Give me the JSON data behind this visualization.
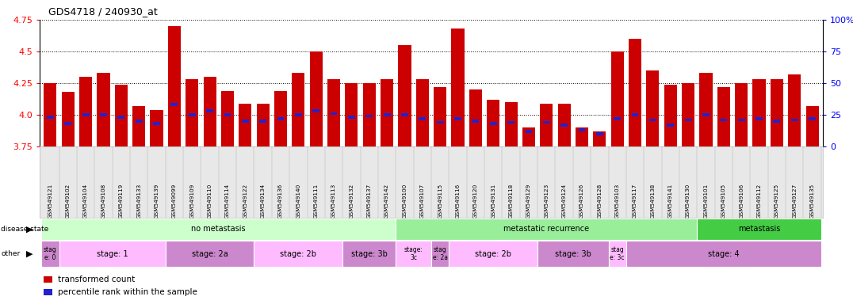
{
  "title": "GDS4718 / 240930_at",
  "samples": [
    "GSM549121",
    "GSM549102",
    "GSM549104",
    "GSM549108",
    "GSM549119",
    "GSM549133",
    "GSM549139",
    "GSM549099",
    "GSM549109",
    "GSM549110",
    "GSM549114",
    "GSM549122",
    "GSM549134",
    "GSM549136",
    "GSM549140",
    "GSM549111",
    "GSM549113",
    "GSM549132",
    "GSM549137",
    "GSM549142",
    "GSM549100",
    "GSM549107",
    "GSM549115",
    "GSM549116",
    "GSM549120",
    "GSM549131",
    "GSM549118",
    "GSM549129",
    "GSM549123",
    "GSM549124",
    "GSM549126",
    "GSM549128",
    "GSM549103",
    "GSM549117",
    "GSM549138",
    "GSM549141",
    "GSM549130",
    "GSM549101",
    "GSM549105",
    "GSM549106",
    "GSM549112",
    "GSM549125",
    "GSM549127",
    "GSM549135"
  ],
  "bar_heights": [
    4.25,
    4.18,
    4.3,
    4.33,
    4.24,
    4.07,
    4.04,
    4.7,
    4.28,
    4.3,
    4.19,
    4.09,
    4.09,
    4.19,
    4.33,
    4.5,
    4.28,
    4.25,
    4.25,
    4.28,
    4.55,
    4.28,
    4.22,
    4.68,
    4.2,
    4.12,
    4.1,
    3.9,
    4.09,
    4.09,
    3.9,
    3.87,
    4.5,
    4.6,
    4.35,
    4.24,
    4.25,
    4.33,
    4.22,
    4.25,
    4.28,
    4.28,
    4.32,
    4.07
  ],
  "percentile_ranks": [
    3.98,
    3.93,
    4.0,
    4.0,
    3.98,
    3.95,
    3.93,
    4.08,
    4.0,
    4.03,
    4.0,
    3.95,
    3.95,
    3.97,
    4.0,
    4.03,
    4.01,
    3.98,
    3.99,
    4.0,
    4.0,
    3.97,
    3.94,
    3.97,
    3.95,
    3.93,
    3.94,
    3.87,
    3.94,
    3.92,
    3.88,
    3.85,
    3.97,
    4.0,
    3.96,
    3.92,
    3.96,
    4.0,
    3.96,
    3.96,
    3.97,
    3.95,
    3.96,
    3.97
  ],
  "ymin": 3.75,
  "ymax": 4.75,
  "yticks_left": [
    3.75,
    4.0,
    4.25,
    4.5,
    4.75
  ],
  "yticks_right": [
    0,
    25,
    50,
    75,
    100
  ],
  "bar_color": "#cc0000",
  "percentile_color": "#2222cc",
  "disease_state_segments": [
    {
      "label": "no metastasis",
      "start": 0,
      "end": 19,
      "color": "#ccffcc"
    },
    {
      "label": "metastatic recurrence",
      "start": 20,
      "end": 36,
      "color": "#99ee99"
    },
    {
      "label": "metastasis",
      "start": 37,
      "end": 43,
      "color": "#44cc44"
    }
  ],
  "other_segments": [
    {
      "label": "stag\ne: 0",
      "start": 0,
      "end": 0,
      "color": "#cc88cc"
    },
    {
      "label": "stage: 1",
      "start": 1,
      "end": 6,
      "color": "#ffbbff"
    },
    {
      "label": "stage: 2a",
      "start": 7,
      "end": 11,
      "color": "#cc88cc"
    },
    {
      "label": "stage: 2b",
      "start": 12,
      "end": 16,
      "color": "#ffbbff"
    },
    {
      "label": "stage: 3b",
      "start": 17,
      "end": 19,
      "color": "#cc88cc"
    },
    {
      "label": "stage:\n3c",
      "start": 20,
      "end": 21,
      "color": "#ffbbff"
    },
    {
      "label": "stag\ne: 2a",
      "start": 22,
      "end": 22,
      "color": "#cc88cc"
    },
    {
      "label": "stage: 2b",
      "start": 23,
      "end": 27,
      "color": "#ffbbff"
    },
    {
      "label": "stage: 3b",
      "start": 28,
      "end": 31,
      "color": "#cc88cc"
    },
    {
      "label": "stag\ne: 3c",
      "start": 32,
      "end": 32,
      "color": "#ffbbff"
    },
    {
      "label": "stage: 4",
      "start": 33,
      "end": 43,
      "color": "#cc88cc"
    }
  ]
}
